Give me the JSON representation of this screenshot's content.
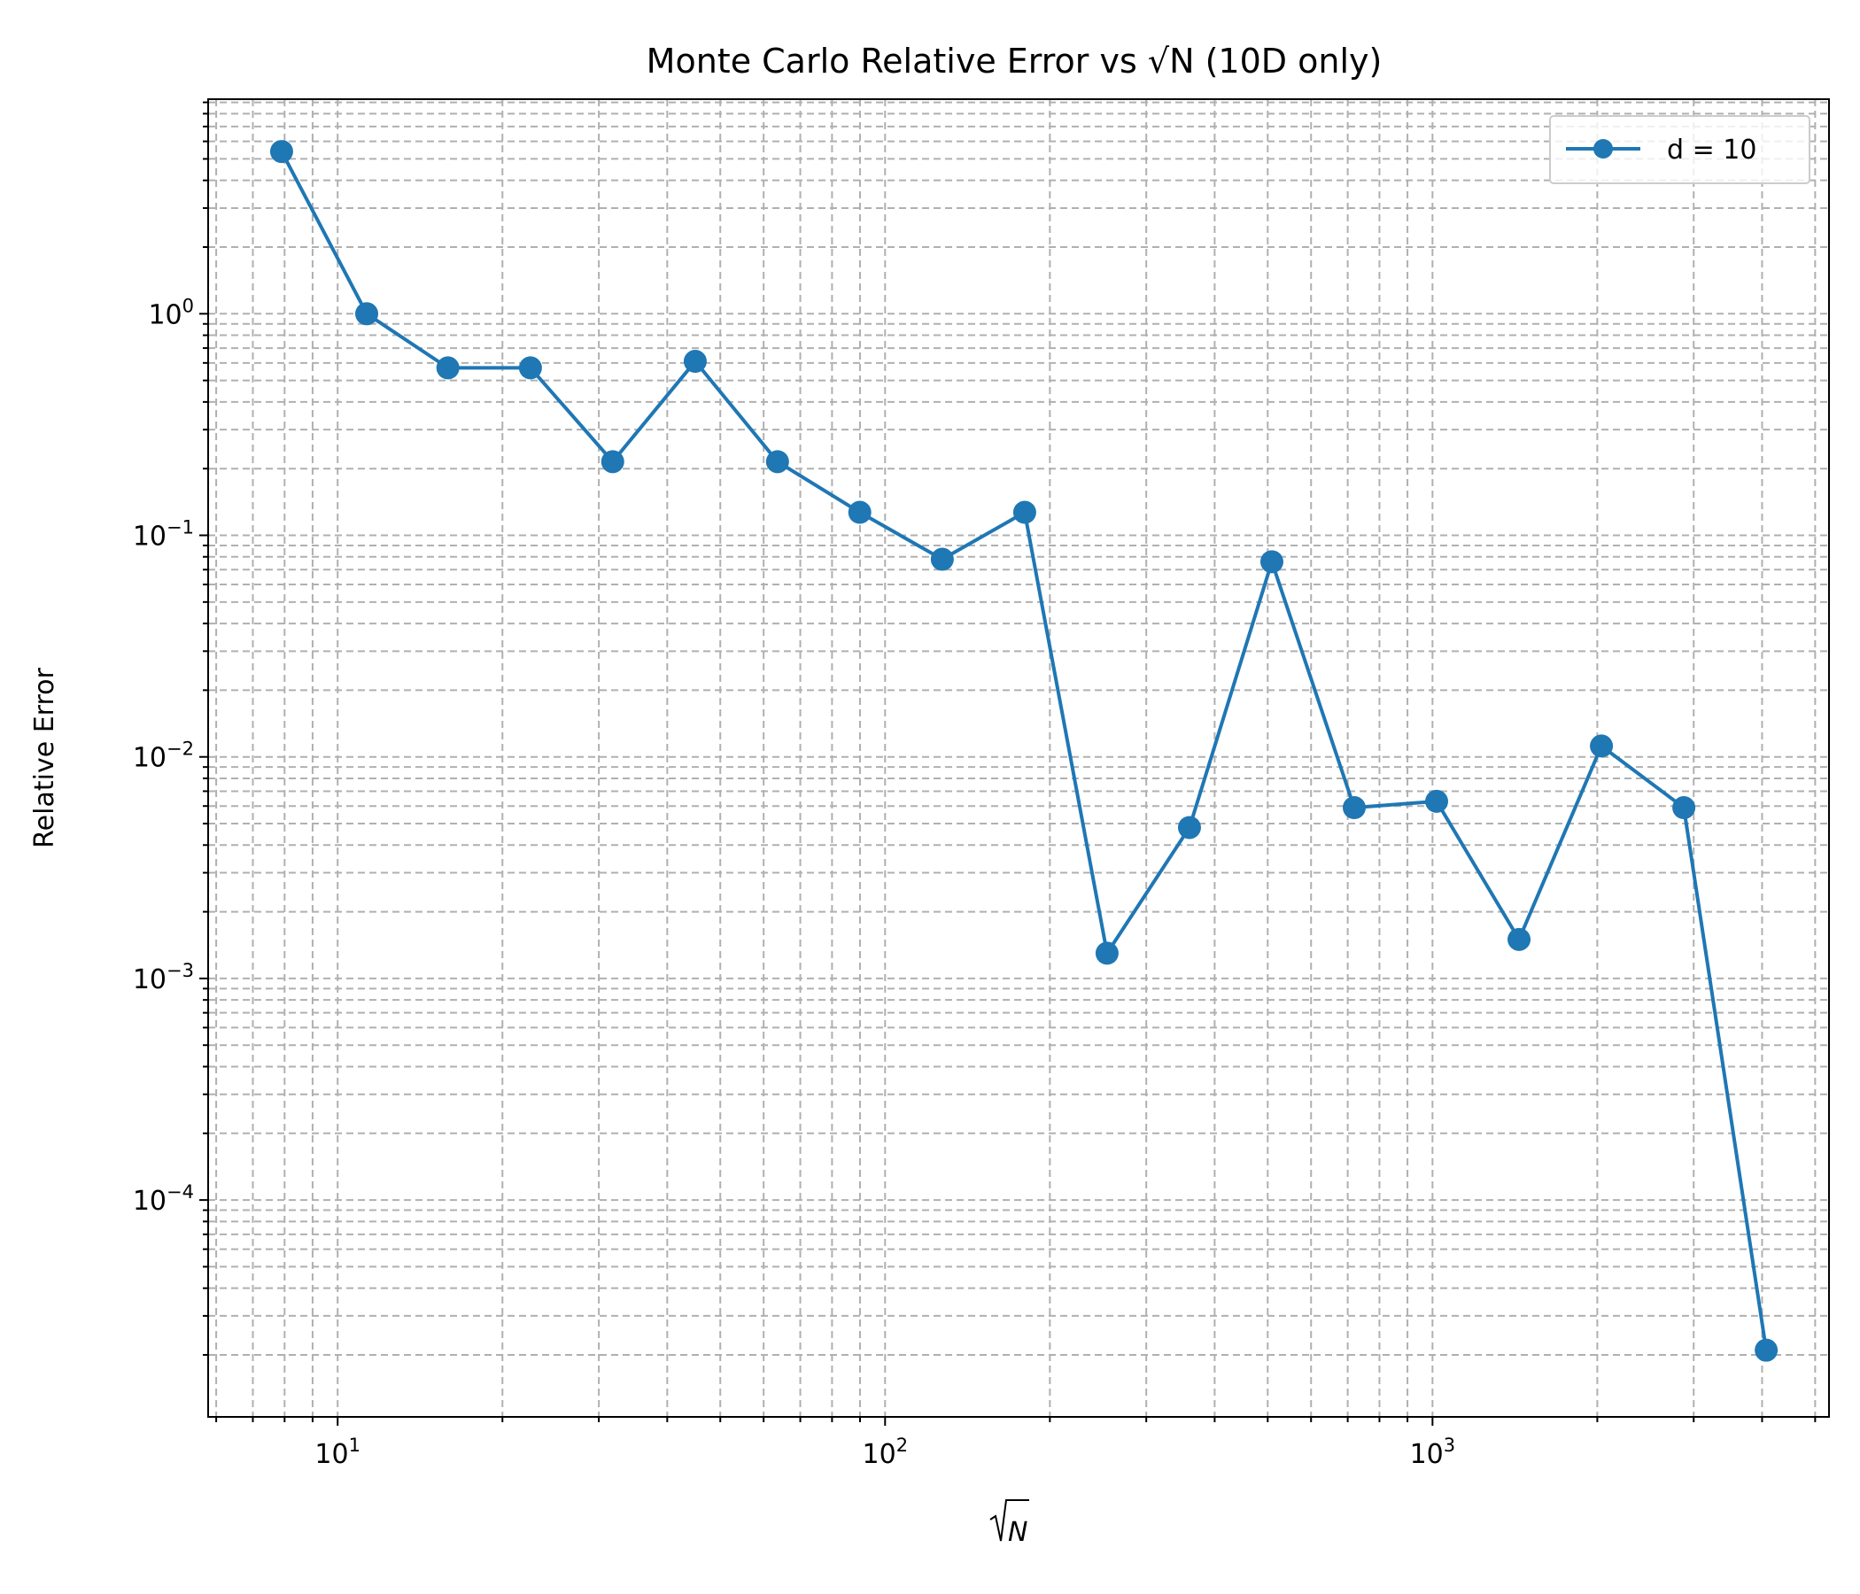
{
  "chart_data": {
    "type": "line",
    "title": "Monte Carlo Relative Error vs √N (10D only)",
    "xlabel_base": "N",
    "ylabel": "Relative Error",
    "x_scale": "log",
    "y_scale": "log",
    "xlim": [
      5.8,
      5300
    ],
    "ylim": [
      1.05e-05,
      9.3
    ],
    "x_ticks": [
      {
        "value": 10,
        "base": "10",
        "exp": "1"
      },
      {
        "value": 100,
        "base": "10",
        "exp": "2"
      },
      {
        "value": 1000,
        "base": "10",
        "exp": "3"
      }
    ],
    "y_ticks": [
      {
        "value": 0.0001,
        "base": "10",
        "exp": "−4"
      },
      {
        "value": 0.001,
        "base": "10",
        "exp": "−3"
      },
      {
        "value": 0.01,
        "base": "10",
        "exp": "−2"
      },
      {
        "value": 0.1,
        "base": "10",
        "exp": "−1"
      },
      {
        "value": 1,
        "base": "10",
        "exp": "0"
      }
    ],
    "grid": "major and minor, dashed",
    "legend_position": "top-right",
    "series": [
      {
        "name": "d = 10",
        "color": "#1f77b4",
        "marker": "circle",
        "x": [
          7.9,
          11.3,
          15.9,
          22.5,
          31.8,
          45.0,
          63.6,
          89.9,
          127.2,
          179.9,
          254.4,
          359.8,
          508.8,
          719.5,
          1017.5,
          1439.0,
          2035.0,
          2878.0,
          4070.0
        ],
        "y": [
          5.4,
          1.0,
          0.57,
          0.57,
          0.215,
          0.61,
          0.215,
          0.127,
          0.078,
          0.127,
          0.0013,
          0.0048,
          0.076,
          0.0059,
          0.0063,
          0.0015,
          0.0112,
          0.0059,
          2.1e-05
        ]
      }
    ]
  }
}
